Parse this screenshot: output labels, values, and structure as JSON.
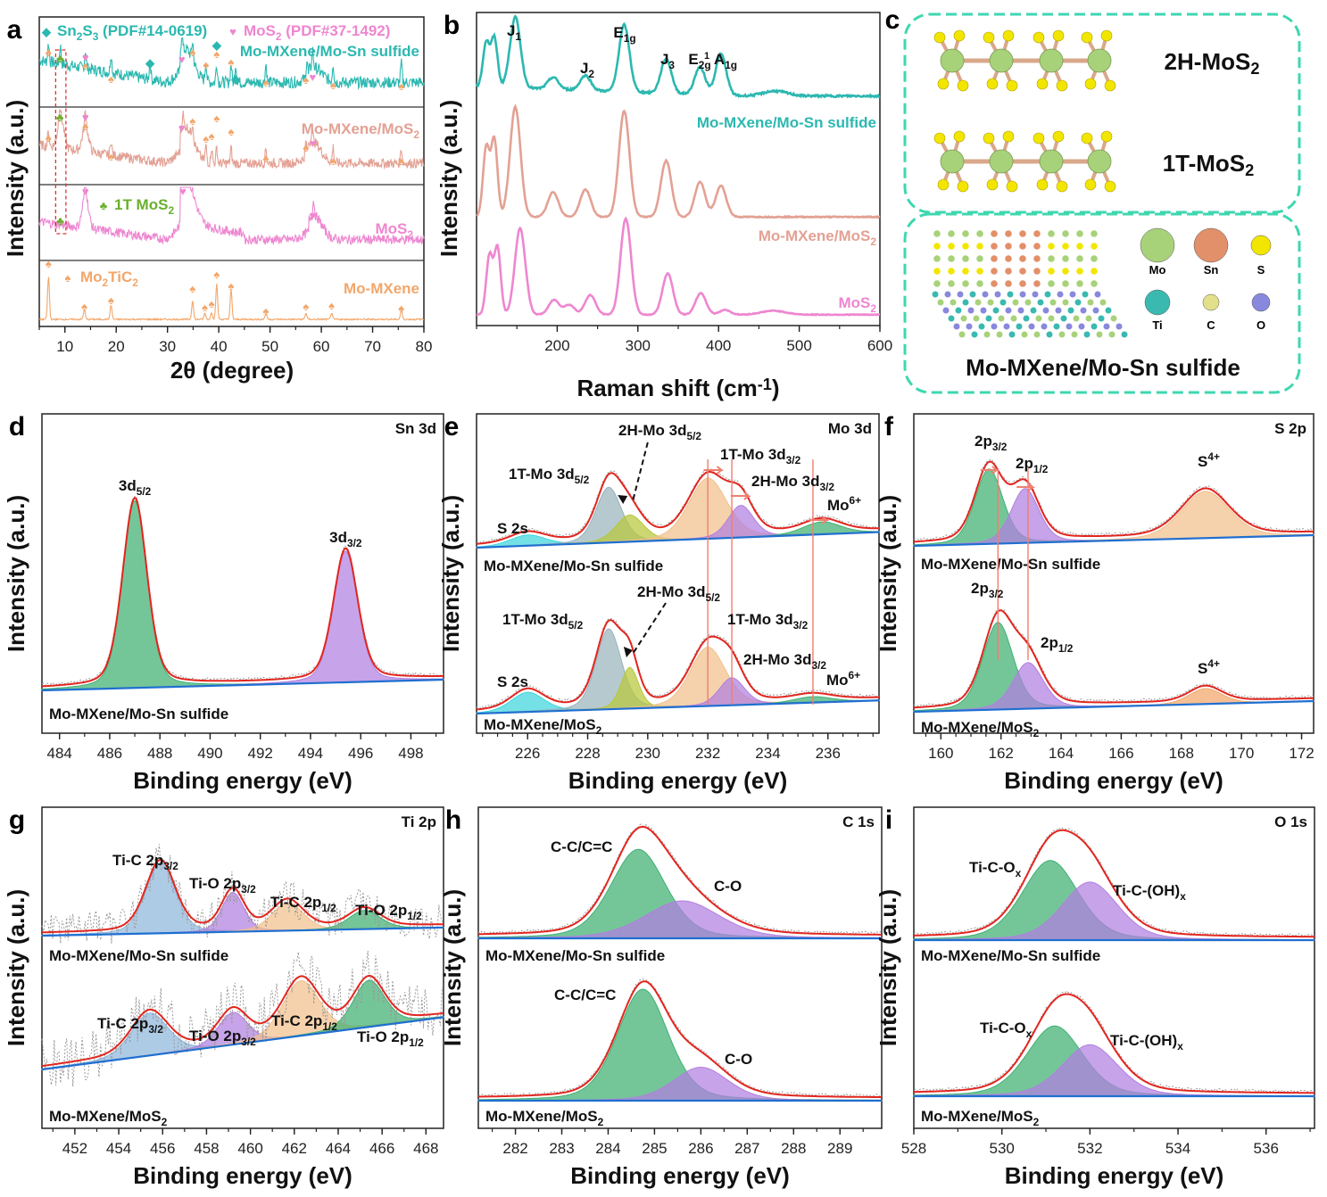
{
  "figure": {
    "panel_letters": [
      "a",
      "b",
      "c",
      "d",
      "e",
      "f",
      "g",
      "h",
      "i"
    ]
  },
  "colors": {
    "teal": "#2bb8b0",
    "salmon": "#e3a194",
    "pink": "#ee86d0",
    "orange": "#f2a66a",
    "green_clover": "#6ab02c",
    "red_fit": "#e2261f",
    "blue_bg": "#1f6fd0",
    "green_fill": "#3fb072",
    "purple_fill": "#b27fe0",
    "peach_fill": "#f2c08c",
    "cyan_fill": "#3fd6dc",
    "grayblue_fill": "#98b4bc",
    "olive_fill": "#b8c83a",
    "lightblue_fill": "#8fb7dc",
    "dash_box": "#3ed7b0"
  },
  "chart_data": [
    {
      "id": "a",
      "type": "line",
      "title": "",
      "xlabel": "2θ (degree)",
      "ylabel": "Intensity (a.u.)",
      "xlim": [
        5,
        80
      ],
      "xticks": [
        10,
        20,
        30,
        40,
        50,
        60,
        70,
        80
      ],
      "legend": [
        {
          "marker": "diamond",
          "text": "Sn₂S₃ (PDF#14-0619)",
          "color": "#2bb8b0"
        },
        {
          "marker": "heart",
          "text": "MoS₂ (PDF#37-1492)",
          "color": "#ee86d0"
        },
        {
          "marker": "club",
          "text": "1T MoS₂",
          "color": "#6ab02c"
        },
        {
          "marker": "spade",
          "text": "Mo₂TiC₂",
          "color": "#f2a66a"
        }
      ],
      "series": [
        {
          "name": "Mo-MXene/Mo-Sn sulfide",
          "color": "#2bb8b0",
          "peaks": [
            6.8,
            9.1,
            14.0,
            19.0,
            26.6,
            32.8,
            34.9,
            37.5,
            39.6,
            42.4,
            43.3,
            49.2,
            57.2,
            58.3,
            62.3,
            75.6
          ],
          "broad": [
            [
              33.5,
              0.45
            ],
            [
              58.5,
              0.2
            ]
          ]
        },
        {
          "name": "Mo-MXene/MoS₂",
          "color": "#e3a194",
          "peaks": [
            6.8,
            9.0,
            14.0,
            19.0,
            33.0,
            34.9,
            37.5,
            38.6,
            39.6,
            42.4,
            49.2,
            57.0,
            58.2,
            62.3,
            75.6
          ],
          "broad": [
            [
              9.2,
              0.5
            ],
            [
              14.0,
              0.4
            ],
            [
              33.5,
              0.6
            ],
            [
              58.3,
              0.35
            ]
          ]
        },
        {
          "name": "MoS₂",
          "color": "#ee86d0",
          "peaks": [
            14.0,
            33.0,
            58.5
          ],
          "broad": [
            [
              14.0,
              0.55
            ],
            [
              33.5,
              0.75
            ],
            [
              58.5,
              0.4
            ]
          ]
        },
        {
          "name": "Mo-MXene",
          "color": "#f2a66a",
          "peaks": [
            6.8,
            13.8,
            19.0,
            34.9,
            37.3,
            38.6,
            39.6,
            42.4,
            49.2,
            57.0,
            62.0,
            75.6
          ]
        }
      ],
      "annotations": {
        "1T_box_range_2theta": [
          8.2,
          10.2
        ]
      }
    },
    {
      "id": "b",
      "type": "line",
      "title": "",
      "xlabel": "Raman shift (cm⁻¹)",
      "ylabel": "Intensity (a.u.)",
      "xlim": [
        100,
        600
      ],
      "xticks": [
        200,
        300,
        400,
        500,
        600
      ],
      "peak_labels": [
        {
          "text": "J1",
          "x": 148
        },
        {
          "text": "J2",
          "x": 235
        },
        {
          "text": "E1g",
          "x": 283
        },
        {
          "text": "J3",
          "x": 335
        },
        {
          "text": "E2g1",
          "x": 377
        },
        {
          "text": "A1g",
          "x": 403
        }
      ],
      "series": [
        {
          "name": "Mo-MXene/Mo-Sn sulfide",
          "color": "#2bb8b0",
          "peaks": [
            [
              112,
              0.45
            ],
            [
              122,
              0.5
            ],
            [
              148,
              0.72
            ],
            [
              195,
              0.12
            ],
            [
              235,
              0.15
            ],
            [
              283,
              0.68
            ],
            [
              335,
              0.35
            ],
            [
              377,
              0.28
            ],
            [
              403,
              0.42
            ],
            [
              470,
              0.05
            ]
          ]
        },
        {
          "name": "Mo-MXene/MoS₂",
          "color": "#e3a194",
          "peaks": [
            [
              112,
              0.55
            ],
            [
              122,
              0.62
            ],
            [
              148,
              0.88
            ],
            [
              195,
              0.2
            ],
            [
              235,
              0.22
            ],
            [
              283,
              0.85
            ],
            [
              335,
              0.45
            ],
            [
              377,
              0.28
            ],
            [
              403,
              0.25
            ]
          ]
        },
        {
          "name": "MoS₂",
          "color": "#ee86d0",
          "peaks": [
            [
              116,
              0.6
            ],
            [
              126,
              0.68
            ],
            [
              154,
              0.88
            ],
            [
              196,
              0.15
            ],
            [
              215,
              0.1
            ],
            [
              241,
              0.2
            ],
            [
              285,
              0.98
            ],
            [
              337,
              0.42
            ],
            [
              378,
              0.22
            ],
            [
              408,
              0.05
            ],
            [
              468,
              0.04
            ]
          ]
        }
      ]
    },
    {
      "id": "d",
      "type": "area",
      "title": "Sn 3d",
      "xlabel": "Binding energy (eV)",
      "ylabel": "Intensity (a.u.)",
      "xlim": [
        483.3,
        499.3
      ],
      "xticks": [
        484,
        486,
        488,
        490,
        492,
        494,
        496,
        498
      ],
      "sample": "Mo-MXene/Mo-Sn sulfide",
      "components": [
        {
          "name": "3d5/2",
          "center": 487.0,
          "height": 1.0,
          "fwhm": 1.15,
          "color": "#3fb072"
        },
        {
          "name": "3d3/2",
          "center": 495.4,
          "height": 0.7,
          "fwhm": 1.15,
          "color": "#b27fe0"
        }
      ]
    },
    {
      "id": "e",
      "type": "area",
      "title": "Mo 3d",
      "xlabel": "Binding energy (eV)",
      "ylabel": "Intensity (a.u.)",
      "xlim": [
        224.3,
        237.7
      ],
      "xticks": [
        226,
        228,
        230,
        232,
        234,
        236
      ],
      "reference_lines_eV": [
        232.0,
        232.8,
        235.5
      ],
      "spectra": [
        {
          "sample": "Mo-MXene/Mo-Sn sulfide",
          "components": [
            {
              "name": "S 2s",
              "center": 226.0,
              "height": 0.12,
              "fwhm": 1.4,
              "color": "#3fd6dc"
            },
            {
              "name": "1T-Mo 3d5/2",
              "center": 228.7,
              "height": 0.62,
              "fwhm": 1.0,
              "color": "#98b4bc"
            },
            {
              "name": "2H-Mo 3d5/2",
              "center": 229.4,
              "height": 0.3,
              "fwhm": 1.1,
              "color": "#b8c83a"
            },
            {
              "name": "1T-Mo 3d3/2",
              "center": 232.0,
              "height": 0.68,
              "fwhm": 1.5,
              "color": "#f2c08c"
            },
            {
              "name": "2H-Mo 3d3/2",
              "center": 233.1,
              "height": 0.36,
              "fwhm": 1.0,
              "color": "#b27fe0"
            },
            {
              "name": "Mo6+",
              "center": 235.8,
              "height": 0.14,
              "fwhm": 1.5,
              "color": "#3fb072"
            }
          ]
        },
        {
          "sample": "Mo-MXene/MoS₂",
          "components": [
            {
              "name": "S 2s",
              "center": 226.0,
              "height": 0.2,
              "fwhm": 1.3,
              "color": "#3fd6dc"
            },
            {
              "name": "1T-Mo 3d5/2",
              "center": 228.7,
              "height": 0.82,
              "fwhm": 1.0,
              "color": "#98b4bc"
            },
            {
              "name": "2H-Mo 3d5/2",
              "center": 229.4,
              "height": 0.42,
              "fwhm": 0.7,
              "color": "#b8c83a"
            },
            {
              "name": "1T-Mo 3d3/2",
              "center": 232.0,
              "height": 0.6,
              "fwhm": 1.4,
              "color": "#f2c08c"
            },
            {
              "name": "2H-Mo 3d3/2",
              "center": 232.8,
              "height": 0.28,
              "fwhm": 1.0,
              "color": "#b27fe0"
            },
            {
              "name": "Mo6+",
              "center": 235.5,
              "height": 0.06,
              "fwhm": 1.5,
              "color": "#3fb072"
            }
          ]
        }
      ]
    },
    {
      "id": "f",
      "type": "area",
      "title": "S 2p",
      "xlabel": "Binding energy (eV)",
      "ylabel": "Intensity (a.u.)",
      "xlim": [
        159.1,
        172.4
      ],
      "xticks": [
        160,
        162,
        164,
        166,
        168,
        170,
        172
      ],
      "reference_lines_eV": [
        161.9,
        162.9
      ],
      "spectra": [
        {
          "sample": "Mo-MXene/Mo-Sn sulfide",
          "components": [
            {
              "name": "2p3/2",
              "center": 161.6,
              "height": 0.8,
              "fwhm": 1.1,
              "color": "#3fb072"
            },
            {
              "name": "2p1/2",
              "center": 162.8,
              "height": 0.58,
              "fwhm": 1.1,
              "color": "#b27fe0"
            },
            {
              "name": "S4+",
              "center": 168.8,
              "height": 0.5,
              "fwhm": 1.9,
              "color": "#f2c08c"
            }
          ]
        },
        {
          "sample": "Mo-MXene/MoS₂",
          "components": [
            {
              "name": "2p3/2",
              "center": 161.9,
              "height": 0.85,
              "fwhm": 1.2,
              "color": "#3fb072"
            },
            {
              "name": "2p1/2",
              "center": 162.9,
              "height": 0.45,
              "fwhm": 1.2,
              "color": "#b27fe0"
            },
            {
              "name": "S4+",
              "center": 168.8,
              "height": 0.15,
              "fwhm": 1.3,
              "color": "#f2a66a"
            }
          ]
        }
      ]
    },
    {
      "id": "g",
      "type": "area",
      "title": "Ti 2p",
      "xlabel": "Binding energy (eV)",
      "ylabel": "Intensity (a.u.)",
      "xlim": [
        450.5,
        468.8
      ],
      "xticks": [
        452,
        454,
        456,
        458,
        460,
        462,
        464,
        466,
        468
      ],
      "spectra": [
        {
          "sample": "Mo-MXene/Mo-Sn sulfide",
          "components": [
            {
              "name": "Ti-C 2p3/2",
              "center": 455.9,
              "height": 0.75,
              "fwhm": 1.6,
              "color": "#8fb7dc"
            },
            {
              "name": "Ti-O 2p3/2",
              "center": 459.2,
              "height": 0.42,
              "fwhm": 1.2,
              "color": "#b27fe0"
            },
            {
              "name": "Ti-C 2p1/2",
              "center": 461.7,
              "height": 0.3,
              "fwhm": 1.7,
              "color": "#f2c08c"
            },
            {
              "name": "Ti-O 2p1/2",
              "center": 465.2,
              "height": 0.2,
              "fwhm": 1.7,
              "color": "#3fb072"
            }
          ]
        },
        {
          "sample": "Mo-MXene/MoS₂",
          "components": [
            {
              "name": "Ti-C 2p3/2",
              "center": 455.4,
              "height": 0.5,
              "fwhm": 2.0,
              "color": "#8fb7dc"
            },
            {
              "name": "Ti-O 2p3/2",
              "center": 459.2,
              "height": 0.38,
              "fwhm": 1.6,
              "color": "#b27fe0"
            },
            {
              "name": "Ti-C 2p1/2",
              "center": 462.3,
              "height": 0.65,
              "fwhm": 2.0,
              "color": "#f2c08c"
            },
            {
              "name": "Ti-O 2p1/2",
              "center": 465.4,
              "height": 0.55,
              "fwhm": 1.7,
              "color": "#3fb072"
            }
          ]
        }
      ]
    },
    {
      "id": "h",
      "type": "area",
      "title": "C 1s",
      "xlabel": "Binding energy (eV)",
      "ylabel": "Intensity (a.u.)",
      "xlim": [
        281.2,
        289.9
      ],
      "xticks": [
        282,
        283,
        284,
        285,
        286,
        287,
        288,
        289
      ],
      "spectra": [
        {
          "sample": "Mo-MXene/Mo-Sn sulfide",
          "components": [
            {
              "name": "C-C/C=C",
              "center": 284.65,
              "height": 0.95,
              "fwhm": 1.4,
              "color": "#3fb072"
            },
            {
              "name": "C-O",
              "center": 285.6,
              "height": 0.4,
              "fwhm": 1.9,
              "color": "#b27fe0"
            }
          ]
        },
        {
          "sample": "Mo-MXene/MoS₂",
          "components": [
            {
              "name": "C-C/C=C",
              "center": 284.75,
              "height": 1.0,
              "fwhm": 1.3,
              "color": "#3fb072"
            },
            {
              "name": "C-O",
              "center": 286.0,
              "height": 0.3,
              "fwhm": 1.4,
              "color": "#b27fe0"
            }
          ]
        }
      ]
    },
    {
      "id": "i",
      "type": "area",
      "title": "O 1s",
      "xlabel": "Binding energy (eV)",
      "ylabel": "Intensity (a.u.)",
      "xlim": [
        528,
        537.1
      ],
      "xticks": [
        528,
        530,
        532,
        534,
        536
      ],
      "spectra": [
        {
          "sample": "Mo-MXene/Mo-Sn sulfide",
          "components": [
            {
              "name": "Ti-C-Ox",
              "center": 531.1,
              "height": 0.85,
              "fwhm": 1.5,
              "color": "#3fb072"
            },
            {
              "name": "Ti-C-(OH)x",
              "center": 532.0,
              "height": 0.62,
              "fwhm": 1.5,
              "color": "#b27fe0"
            }
          ]
        },
        {
          "sample": "Mo-MXene/MoS₂",
          "components": [
            {
              "name": "Ti-C-Ox",
              "center": 531.2,
              "height": 0.75,
              "fwhm": 1.5,
              "color": "#3fb072"
            },
            {
              "name": "Ti-C-(OH)x",
              "center": 532.0,
              "height": 0.55,
              "fwhm": 1.5,
              "color": "#b27fe0"
            }
          ]
        }
      ]
    }
  ],
  "panel_c": {
    "structures": [
      "2H-MoS₂",
      "1T-MoS₂"
    ],
    "composite_title": "Mo-MXene/Mo-Sn sulfide",
    "atom_legend": [
      {
        "element": "Mo",
        "color": "#a8d27a"
      },
      {
        "element": "Sn",
        "color": "#e2906a"
      },
      {
        "element": "S",
        "color": "#f2e600"
      },
      {
        "element": "Ti",
        "color": "#3ab9b0"
      },
      {
        "element": "C",
        "color": "#e2e08a"
      },
      {
        "element": "O",
        "color": "#8888dd"
      }
    ]
  },
  "labels": {
    "a_ylabel": "Intensity (a.u.)",
    "a_xlabel": "2θ (degree)",
    "b_ylabel": "Intensity (a.u.)",
    "b_xlabel_main": "Raman shift (cm",
    "b_xlabel_sup": "-1",
    "b_xlabel_end": ")",
    "be_xlabel": "Binding energy (eV)",
    "int_ylabel": "Intensity (a.u.)",
    "sn2s3_legend": "Sn",
    "sample_sulfide": "Mo-MXene/Mo-Sn sulfide",
    "sample_mos2_prefix": "Mo-MXene/MoS",
    "sample_mos2_only_prefix": "MoS",
    "sub2": "2",
    "mxene": "Mo-MXene",
    "d_title": "Sn 3d",
    "e_title": "Mo 3d",
    "f_title": "S 2p",
    "g_title": "Ti 2p",
    "h_title": "C 1s",
    "i_title": "O 1s"
  }
}
